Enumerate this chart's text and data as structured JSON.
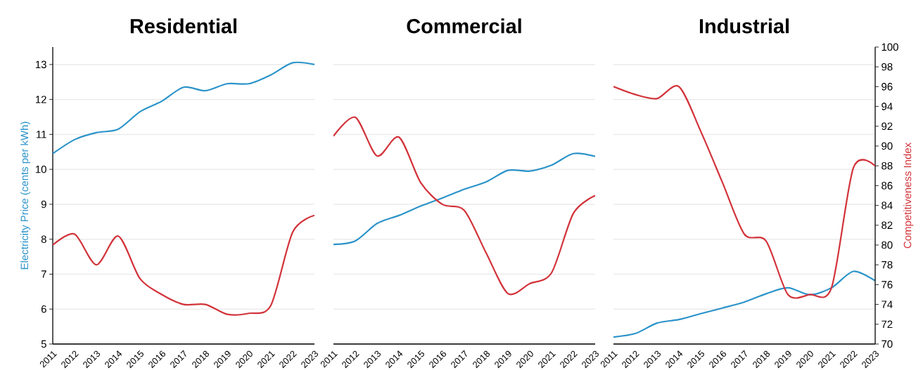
{
  "chart_data": [
    {
      "type": "line",
      "title": "Residential",
      "ylabel": "Electricity Price (cents per kWh)",
      "categories": [
        "2011",
        "2012",
        "2013",
        "2014",
        "2015",
        "2016",
        "2017",
        "2018",
        "2019",
        "2020",
        "2021",
        "2022",
        "2023"
      ],
      "ylim": [
        5,
        13.5
      ],
      "yticks": [
        5,
        6,
        7,
        8,
        9,
        10,
        11,
        12,
        13
      ],
      "y2lim": [
        70,
        100
      ],
      "grid": "y",
      "tick_labels": "xy",
      "series": [
        {
          "color": "#2b93c9",
          "axis": "y",
          "values": [
            10.45,
            10.85,
            11.05,
            11.15,
            11.65,
            11.95,
            12.35,
            12.25,
            12.45,
            12.45,
            12.7,
            13.05,
            13.0
          ]
        },
        {
          "color": "#d2333a",
          "axis": "y2",
          "values": [
            80.0,
            81.1,
            78.0,
            80.9,
            76.6,
            75.0,
            74.0,
            74.0,
            73.0,
            73.1,
            73.9,
            81.3,
            83.0
          ]
        }
      ]
    },
    {
      "type": "line",
      "title": "Commercial",
      "categories": [
        "2011",
        "2012",
        "2013",
        "2014",
        "2015",
        "2016",
        "2017",
        "2018",
        "2019",
        "2020",
        "2021",
        "2022",
        "2023"
      ],
      "yticks": [
        5,
        6,
        7,
        8,
        9,
        10,
        11,
        12,
        13
      ],
      "y2lim": [
        70,
        100
      ],
      "y2ticks": [
        70,
        72,
        74,
        76,
        78,
        80,
        82,
        84,
        86,
        88,
        90,
        92,
        94,
        96,
        98,
        100
      ],
      "grid": "y",
      "tick_labels": "x",
      "series": [
        {
          "color": "#2b93c9",
          "axis": "y",
          "values": [
            7.85,
            7.95,
            8.45,
            8.68,
            8.95,
            9.18,
            9.43,
            9.64,
            9.97,
            9.95,
            10.12,
            10.45,
            10.37
          ]
        },
        {
          "color": "#d2333a",
          "axis": "y2",
          "values": [
            91.0,
            92.9,
            89.0,
            90.9,
            86.3,
            84.1,
            83.5,
            79.2,
            75.1,
            76.1,
            77.2,
            83.2,
            85.0
          ]
        }
      ]
    },
    {
      "type": "line",
      "title": "Industrial",
      "y2label": "Competitiveness Index",
      "categories": [
        "2011",
        "2012",
        "2013",
        "2014",
        "2015",
        "2016",
        "2017",
        "2018",
        "2019",
        "2020",
        "2021",
        "2022",
        "2023"
      ],
      "ylim": [
        5,
        13.5
      ],
      "y2lim": [
        70,
        100
      ],
      "y2ticks": [
        70,
        72,
        74,
        76,
        78,
        80,
        82,
        84,
        86,
        88,
        90,
        92,
        94,
        96,
        98,
        100
      ],
      "grid": "y",
      "tick_labels": "xy2",
      "series": [
        {
          "color": "#2b93c9",
          "axis": "y",
          "values": [
            5.2,
            5.3,
            5.6,
            5.7,
            5.87,
            6.03,
            6.2,
            6.44,
            6.61,
            6.41,
            6.61,
            7.08,
            6.81
          ]
        },
        {
          "color": "#d2333a",
          "axis": "y2",
          "values": [
            96.0,
            95.2,
            94.8,
            96.0,
            91.5,
            86.3,
            81.1,
            80.4,
            75.0,
            75.0,
            75.7,
            87.8,
            88.0
          ]
        }
      ]
    }
  ]
}
